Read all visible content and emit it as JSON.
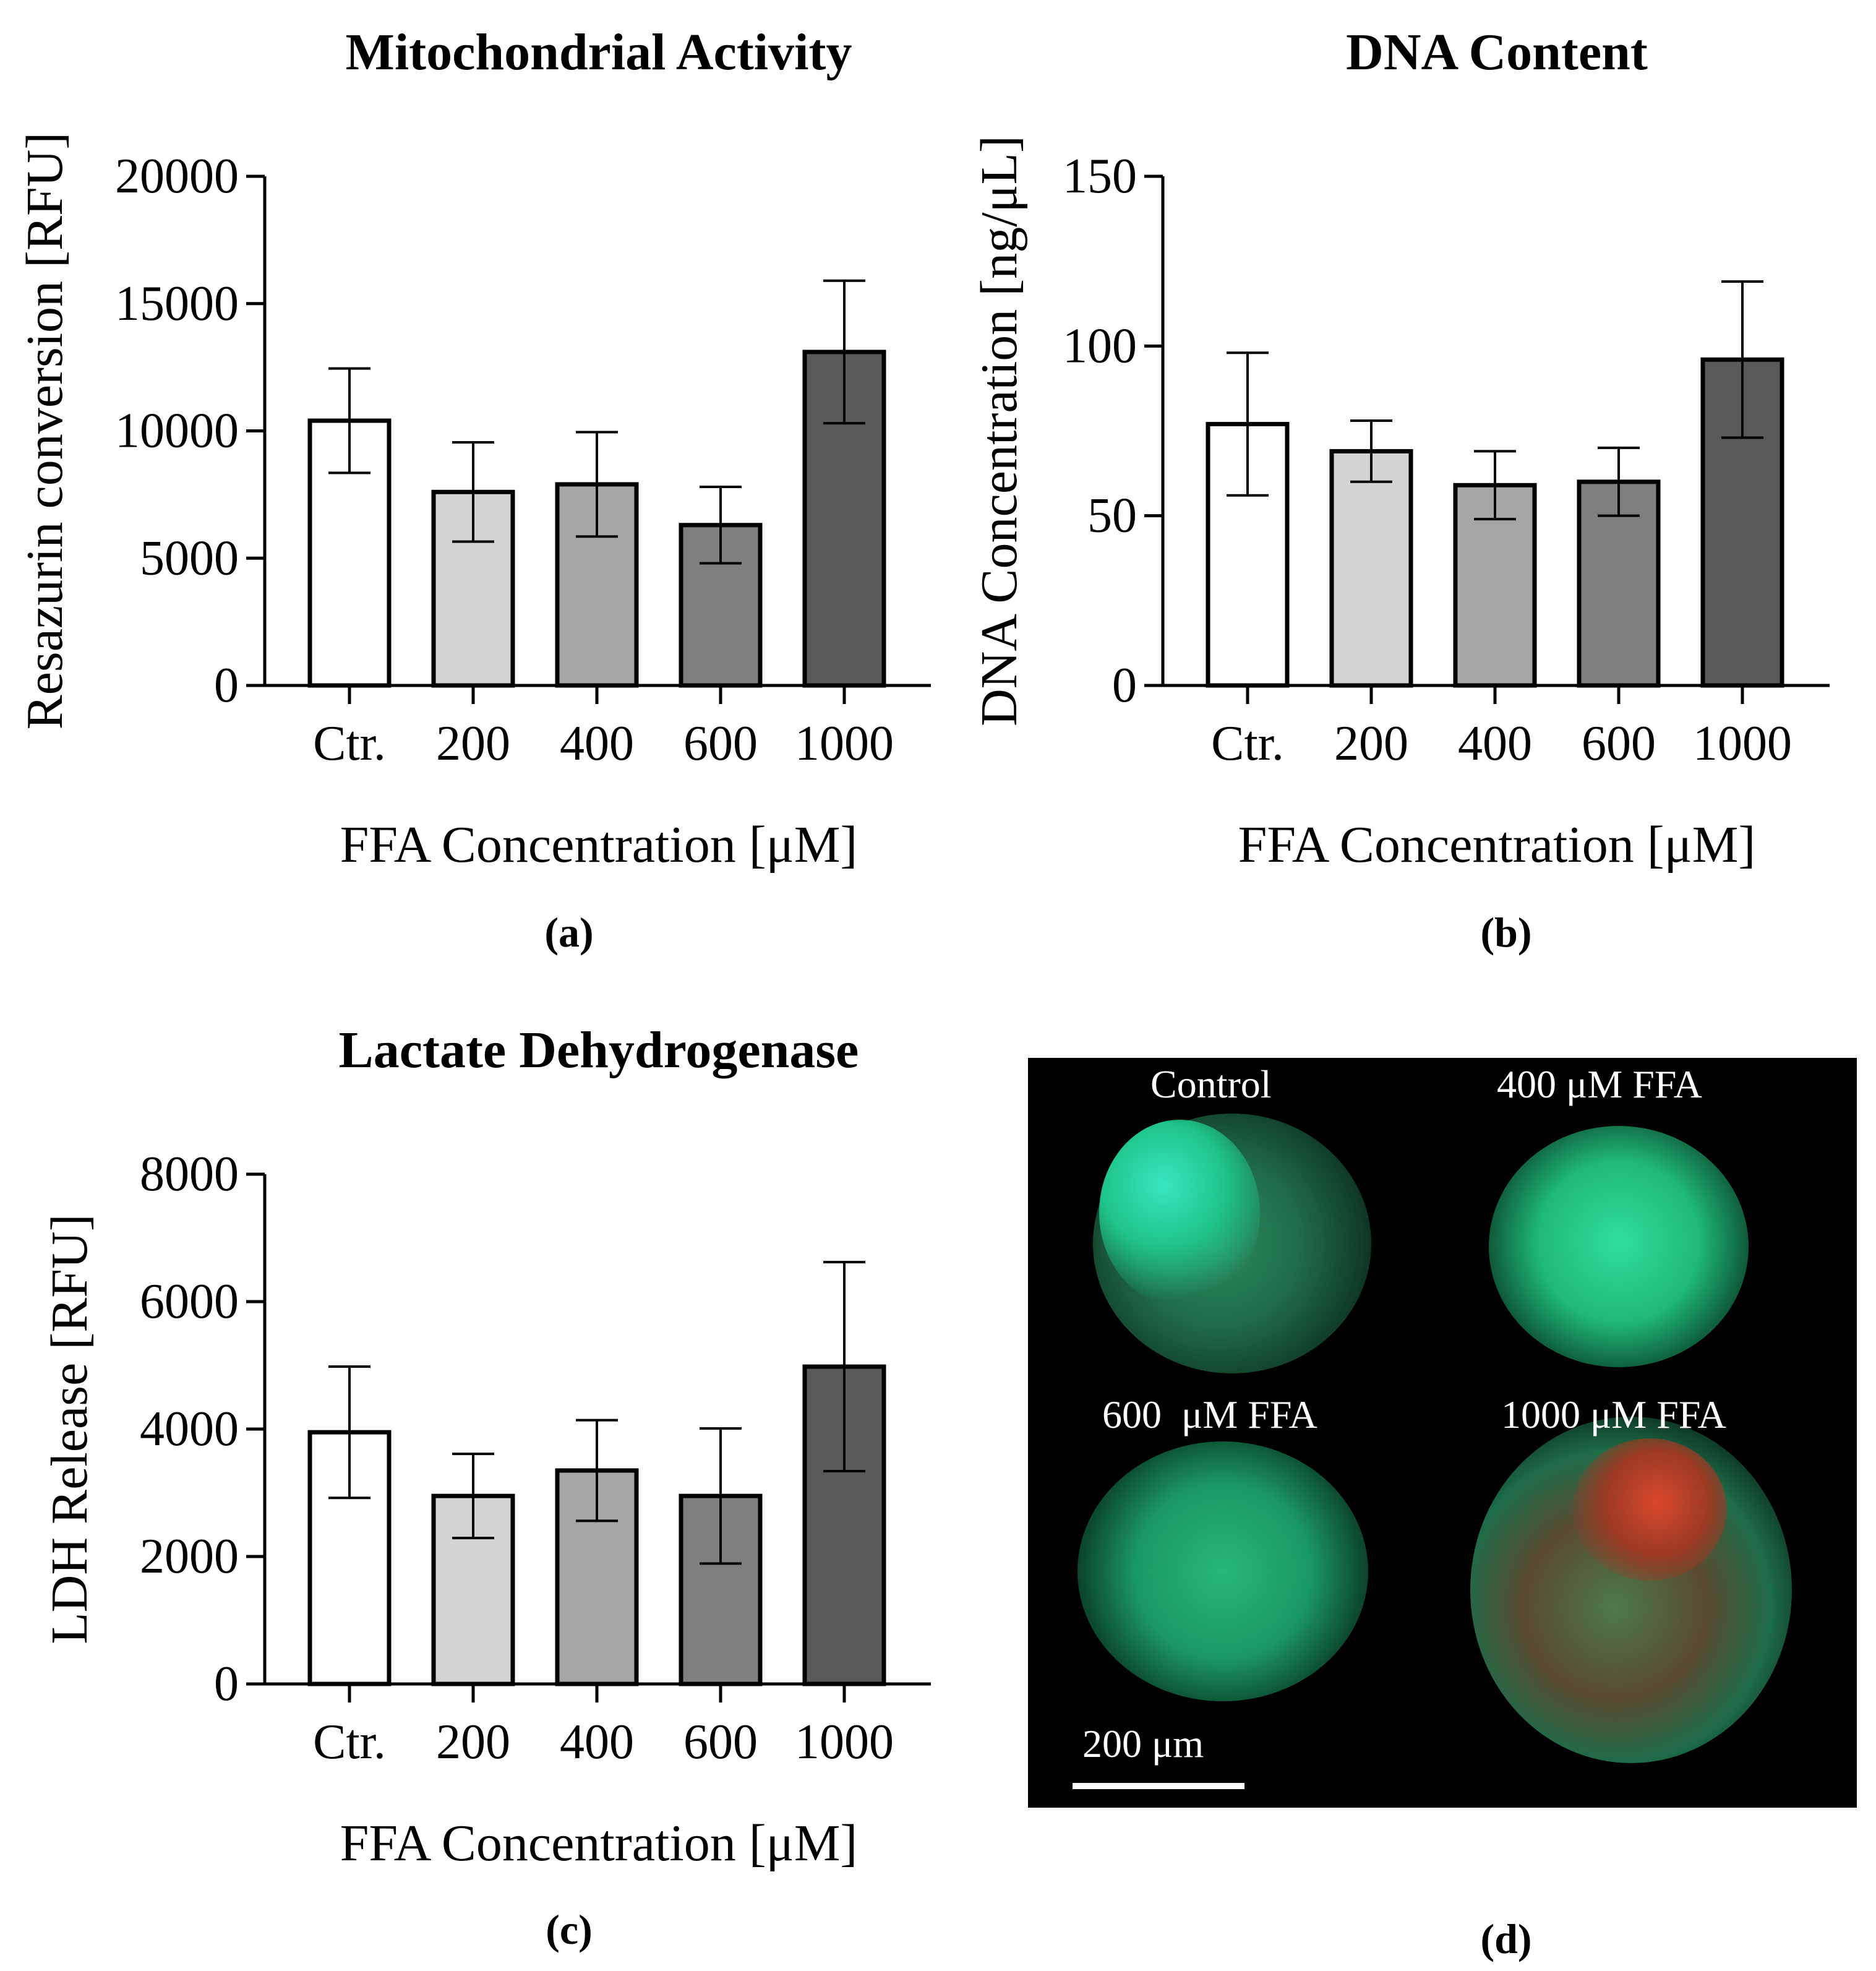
{
  "chart_data": [
    {
      "panel": "(a)",
      "type": "bar",
      "title": "Mitochondrial Activity",
      "xlabel": "FFA Concentration [μM]",
      "ylabel": "Resazurin conversion [RFU]",
      "categories": [
        "Ctr.",
        "200",
        "400",
        "600",
        "1000"
      ],
      "values": [
        10400,
        7600,
        7900,
        6300,
        13100
      ],
      "errors": [
        2050,
        1950,
        2050,
        1500,
        2800
      ],
      "ylim": [
        0,
        20000
      ],
      "yticks": [
        "0",
        "5000",
        "10000",
        "15000",
        "20000"
      ],
      "colors": [
        "#ffffff",
        "#d4d4d4",
        "#a6a6a8",
        "#7f7f7f",
        "#595959"
      ],
      "grid": false
    },
    {
      "panel": "(b)",
      "type": "bar",
      "title": "DNA Content",
      "xlabel": "FFA Concentration [μM]",
      "ylabel": "DNA Concentration [ng/μL]",
      "categories": [
        "Ctr.",
        "200",
        "400",
        "600",
        "1000"
      ],
      "values": [
        77,
        69,
        59,
        60,
        96
      ],
      "errors": [
        21,
        9,
        10,
        10,
        23
      ],
      "ylim": [
        0,
        150
      ],
      "yticks": [
        "0",
        "50",
        "100",
        "150"
      ],
      "colors": [
        "#ffffff",
        "#d4d4d4",
        "#a6a6a8",
        "#7f7f7f",
        "#595959"
      ],
      "grid": false
    },
    {
      "panel": "(c)",
      "type": "bar",
      "title": "Lactate Dehydrogenase",
      "xlabel": "FFA Concentration [μM]",
      "ylabel": "LDH Release [RFU]",
      "categories": [
        "Ctr.",
        "200",
        "400",
        "600",
        "1000"
      ],
      "values": [
        3950,
        2950,
        3350,
        2950,
        4980
      ],
      "errors": [
        1030,
        660,
        790,
        1060,
        1640
      ],
      "ylim": [
        0,
        8000
      ],
      "yticks": [
        "0",
        "2000",
        "4000",
        "6000",
        "8000"
      ],
      "colors": [
        "#ffffff",
        "#d4d4d4",
        "#a6a6a8",
        "#7f7f7f",
        "#595959"
      ],
      "grid": false
    }
  ],
  "panel_d": {
    "tag": "(d)",
    "labels": {
      "control": "Control",
      "ffa400": "400 μM FFA",
      "ffa600": "600  μM FFA",
      "ffa1000": "1000 μM FFA"
    },
    "scale_bar": "200 μm"
  }
}
